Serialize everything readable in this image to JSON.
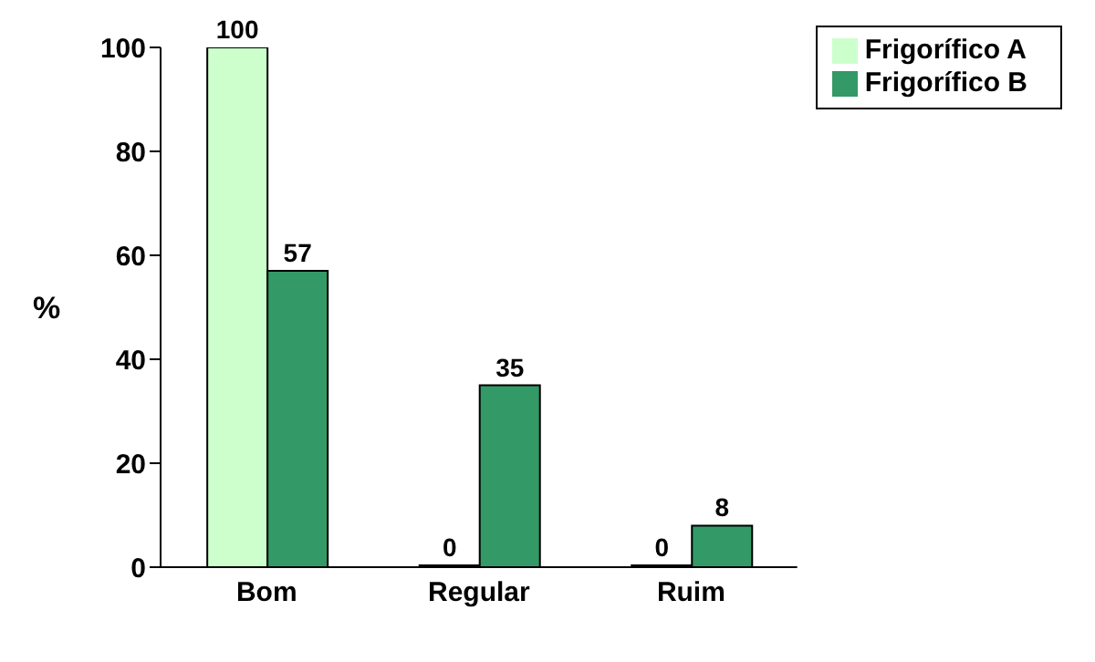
{
  "chart_data": {
    "type": "bar",
    "ylabel": "%",
    "categories": [
      "Bom",
      "Regular",
      "Ruim"
    ],
    "series": [
      {
        "name": "Frigorífico A",
        "color": "#ccffcc",
        "values": [
          100,
          0,
          0
        ]
      },
      {
        "name": "Frigorífico B",
        "color": "#339966",
        "values": [
          57,
          35,
          8
        ]
      }
    ],
    "ylim": [
      0,
      100
    ],
    "yticks": [
      0,
      20,
      40,
      60,
      80,
      100
    ],
    "grid": false,
    "legend": "top right",
    "data_labels": true
  }
}
